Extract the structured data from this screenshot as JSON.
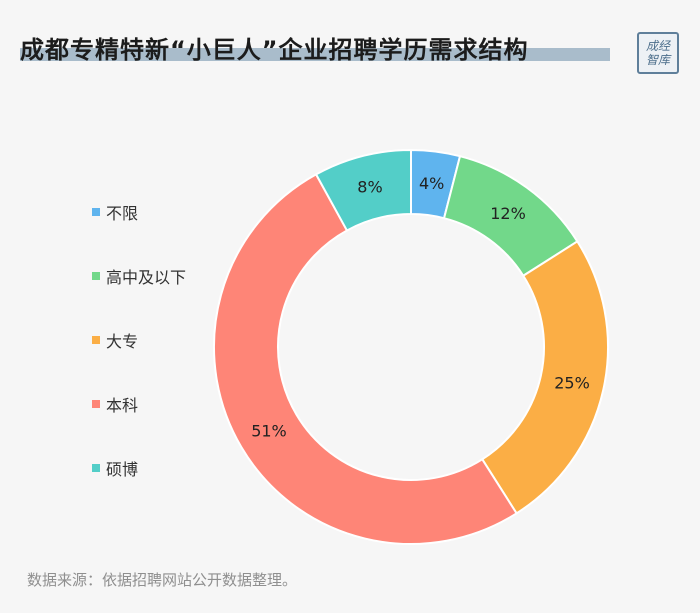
{
  "header": {
    "title": "成都专精特新“小巨人”企业招聘学历需求结构",
    "logo_text": "成经智库"
  },
  "footer": {
    "source": "数据来源：依据招聘网站公开数据整理。"
  },
  "chart_data": {
    "type": "pie",
    "donut": true,
    "title": "成都专精特新“小巨人”企业招聘学历需求结构",
    "legend_position": "left",
    "categories": [
      "不限",
      "高中及以下",
      "大专",
      "本科",
      "硕博"
    ],
    "values": [
      4,
      12,
      25,
      51,
      8
    ],
    "labels": [
      "4%",
      "12%",
      "25%",
      "51%",
      "8%"
    ],
    "colors": [
      "#5fb4ee",
      "#72d88a",
      "#fbae45",
      "#fe8577",
      "#53cec8"
    ]
  }
}
